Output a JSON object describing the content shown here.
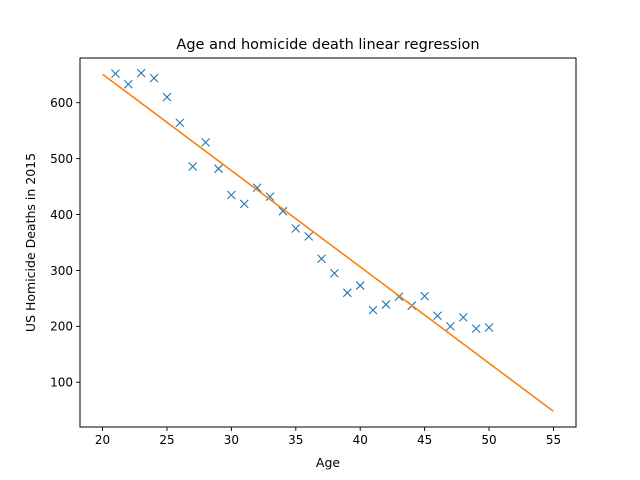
{
  "chart_data": {
    "type": "scatter",
    "title": "Age and homicide death linear regression",
    "xlabel": "Age",
    "ylabel": "US Homicide Deaths in 2015",
    "xlim": [
      18.25,
      56.75
    ],
    "ylim": [
      20,
      680
    ],
    "xticks": [
      20,
      25,
      30,
      35,
      40,
      45,
      50,
      55
    ],
    "yticks": [
      100,
      200,
      300,
      400,
      500,
      600
    ],
    "grid": false,
    "legend": "none",
    "series": [
      {
        "kind": "scatter",
        "marker": "x",
        "color": "#1f77b4",
        "x": [
          21,
          22,
          23,
          24,
          25,
          26,
          27,
          28,
          29,
          30,
          31,
          32,
          33,
          34,
          35,
          36,
          37,
          38,
          39,
          40,
          41,
          42,
          43,
          44,
          45,
          46,
          47,
          48,
          49,
          50
        ],
        "y": [
          652,
          633,
          653,
          644,
          610,
          564,
          486,
          529,
          482,
          435,
          419,
          448,
          432,
          406,
          375,
          361,
          321,
          295,
          260,
          273,
          229,
          239,
          253,
          237,
          254,
          219,
          200,
          216,
          196,
          198
        ]
      },
      {
        "kind": "line",
        "color": "#ff7f0e",
        "x": [
          20,
          55
        ],
        "y": [
          651,
          48
        ]
      }
    ]
  }
}
